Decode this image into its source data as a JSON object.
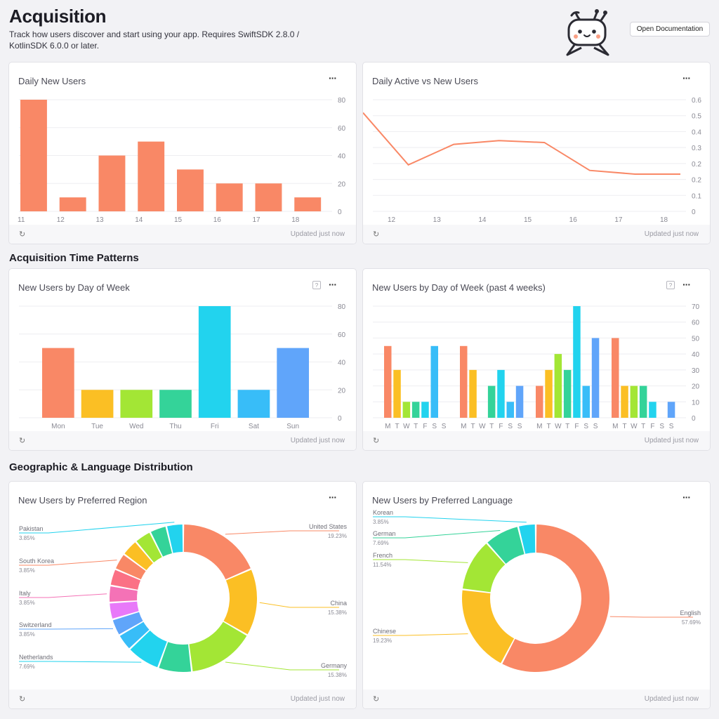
{
  "header": {
    "title": "Acquisition",
    "description": "Track how users discover and start using your app. Requires SwiftSDK 2.8.0 / KotlinSDK 6.0.0 or later.",
    "doc_button": "Open Documentation"
  },
  "sections": {
    "time_patterns": "Acquisition Time Patterns",
    "geo_language": "Geographic & Language Distribution"
  },
  "footer": {
    "updated": "Updated just now",
    "refresh_icon": "refresh-icon"
  },
  "cards": {
    "daily_new_users": {
      "title": "Daily New Users",
      "menu": "···"
    },
    "daily_active_vs_new": {
      "title": "Daily Active vs New Users",
      "menu": "···"
    },
    "dow": {
      "title": "New Users by Day of Week",
      "menu": "···",
      "help": "?"
    },
    "dow4": {
      "title": "New Users by Day of Week (past 4 weeks)",
      "menu": "···",
      "help": "?"
    },
    "region": {
      "title": "New Users by Preferred Region",
      "menu": "···"
    },
    "language": {
      "title": "New Users by Preferred Language",
      "menu": "···"
    }
  },
  "colors": {
    "orange": "#f98866",
    "yellow": "#fbbf24",
    "lime": "#a3e635",
    "green": "#34d399",
    "cyan": "#22d3ee",
    "sky": "#38bdf8",
    "blue": "#60a5fa",
    "pink": "#e879f9",
    "rose": "#f472b6",
    "red": "#fb7185",
    "grid": "#eeeef1"
  },
  "chart_data": [
    {
      "id": "daily_new_users",
      "type": "bar",
      "categories": [
        "11",
        "12",
        "13",
        "14",
        "15",
        "16",
        "17",
        "18"
      ],
      "values": [
        80,
        10,
        40,
        50,
        30,
        20,
        20,
        10
      ],
      "ylim": [
        0,
        80
      ],
      "yticks": [
        "0",
        "20",
        "40",
        "60",
        "80"
      ],
      "color": "#f98866"
    },
    {
      "id": "daily_active_vs_new",
      "type": "line",
      "x": [
        "11",
        "12",
        "13",
        "14",
        "15",
        "16",
        "17",
        "18"
      ],
      "xticks": [
        "12",
        "13",
        "14",
        "15",
        "16",
        "17",
        "18"
      ],
      "values": [
        0.53,
        0.25,
        0.36,
        0.38,
        0.37,
        0.22,
        0.2,
        0.2
      ],
      "ylim": [
        0,
        0.6
      ],
      "yticks": [
        "0",
        "0.1",
        "0.2",
        "0.2",
        "0.3",
        "0.4",
        "0.5",
        "0.6"
      ],
      "color": "#f98866"
    },
    {
      "id": "dow",
      "type": "bar",
      "categories": [
        "Mon",
        "Tue",
        "Wed",
        "Thu",
        "Fri",
        "Sat",
        "Sun"
      ],
      "values": [
        50,
        20,
        20,
        20,
        80,
        20,
        50
      ],
      "ylim": [
        0,
        80
      ],
      "yticks": [
        "0",
        "20",
        "40",
        "60",
        "80"
      ],
      "colors": [
        "#f98866",
        "#fbbf24",
        "#a3e635",
        "#34d399",
        "#22d3ee",
        "#38bdf8",
        "#60a5fa"
      ]
    },
    {
      "id": "dow4",
      "type": "bar",
      "group_labels": [
        "M",
        "T",
        "W",
        "T",
        "F",
        "S",
        "S"
      ],
      "groups": [
        [
          45,
          30,
          10,
          10,
          10,
          45,
          0
        ],
        [
          45,
          30,
          0,
          20,
          30,
          10,
          20
        ],
        [
          20,
          30,
          40,
          30,
          70,
          20,
          50
        ],
        [
          50,
          20,
          20,
          20,
          10,
          0,
          10
        ]
      ],
      "ylim": [
        0,
        70
      ],
      "yticks": [
        "0",
        "10",
        "20",
        "30",
        "40",
        "50",
        "60",
        "70"
      ],
      "colors": [
        "#f98866",
        "#fbbf24",
        "#a3e635",
        "#34d399",
        "#22d3ee",
        "#38bdf8",
        "#60a5fa"
      ]
    },
    {
      "id": "region",
      "type": "pie",
      "slices": [
        {
          "label": "United States",
          "pct": "19.23%",
          "value": 19.23,
          "color": "#f98866",
          "side": "right"
        },
        {
          "label": "China",
          "pct": "15.38%",
          "value": 15.38,
          "color": "#fbbf24",
          "side": "right"
        },
        {
          "label": "Germany",
          "pct": "15.38%",
          "value": 15.38,
          "color": "#a3e635",
          "side": "right"
        },
        {
          "label": "",
          "pct": "",
          "value": 7.69,
          "color": "#34d399",
          "side": "none"
        },
        {
          "label": "Netherlands",
          "pct": "7.69%",
          "value": 7.69,
          "color": "#22d3ee",
          "side": "left"
        },
        {
          "label": "",
          "pct": "",
          "value": 3.85,
          "color": "#38bdf8",
          "side": "none"
        },
        {
          "label": "Switzerland",
          "pct": "3.85%",
          "value": 3.85,
          "color": "#60a5fa",
          "side": "left"
        },
        {
          "label": "",
          "pct": "",
          "value": 3.85,
          "color": "#e879f9",
          "side": "none"
        },
        {
          "label": "Italy",
          "pct": "3.85%",
          "value": 3.85,
          "color": "#f472b6",
          "side": "left"
        },
        {
          "label": "",
          "pct": "",
          "value": 3.85,
          "color": "#fb7185",
          "side": "none"
        },
        {
          "label": "South Korea",
          "pct": "3.85%",
          "value": 3.85,
          "color": "#f98866",
          "side": "left"
        },
        {
          "label": "",
          "pct": "",
          "value": 3.85,
          "color": "#fbbf24",
          "side": "none"
        },
        {
          "label": "",
          "pct": "",
          "value": 3.85,
          "color": "#a3e635",
          "side": "none"
        },
        {
          "label": "",
          "pct": "",
          "value": 3.85,
          "color": "#34d399",
          "side": "none"
        },
        {
          "label": "Pakistan",
          "pct": "3.85%",
          "value": 3.85,
          "color": "#22d3ee",
          "side": "left"
        }
      ]
    },
    {
      "id": "language",
      "type": "pie",
      "slices": [
        {
          "label": "English",
          "pct": "57.69%",
          "value": 57.69,
          "color": "#f98866",
          "side": "right"
        },
        {
          "label": "Chinese",
          "pct": "19.23%",
          "value": 19.23,
          "color": "#fbbf24",
          "side": "left"
        },
        {
          "label": "French",
          "pct": "11.54%",
          "value": 11.54,
          "color": "#a3e635",
          "side": "left"
        },
        {
          "label": "German",
          "pct": "7.69%",
          "value": 7.69,
          "color": "#34d399",
          "side": "left"
        },
        {
          "label": "Korean",
          "pct": "3.85%",
          "value": 3.85,
          "color": "#22d3ee",
          "side": "left"
        }
      ]
    }
  ]
}
